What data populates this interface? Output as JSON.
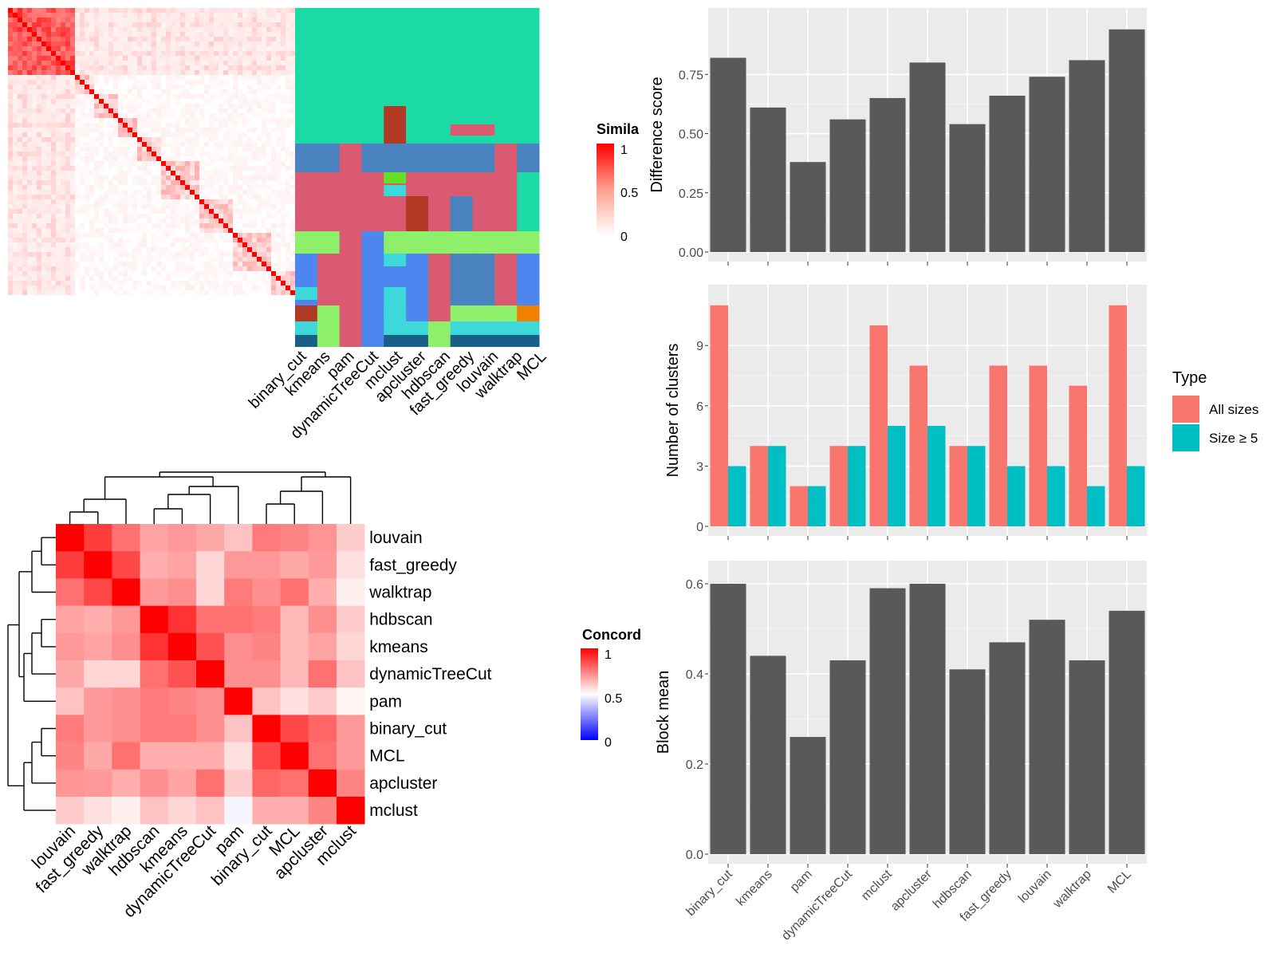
{
  "similarity_heatmap": {
    "legend_title": "Simila",
    "legend_ticks": [
      "1",
      "0.5",
      "0"
    ],
    "method_labels": [
      "binary_cut",
      "kmeans",
      "pam",
      "dynamicTreeCut",
      "mclust",
      "apcluster",
      "hdbscan",
      "fast_greedy",
      "louvain",
      "walktrap",
      "MCL"
    ],
    "colors": {
      "high": "#ff0000",
      "low": "#ffffff"
    }
  },
  "concordance_heatmap": {
    "legend_title": "Concord",
    "legend_ticks": [
      "1",
      "0.5",
      "0"
    ],
    "row_labels": [
      "louvain",
      "fast_greedy",
      "walktrap",
      "hdbscan",
      "kmeans",
      "dynamicTreeCut",
      "pam",
      "binary_cut",
      "MCL",
      "apcluster",
      "mclust"
    ],
    "col_labels": [
      "louvain",
      "fast_greedy",
      "walktrap",
      "hdbscan",
      "kmeans",
      "dynamicTreeCut",
      "pam",
      "binary_cut",
      "MCL",
      "apcluster",
      "mclust"
    ],
    "colors": {
      "high": "#ff0000",
      "mid": "#ffffff",
      "low": "#0000ff"
    }
  },
  "legend_type": {
    "title": "Type",
    "items": [
      {
        "label": "All sizes",
        "color": "#f8766d"
      },
      {
        "label": "Size ≥ 5",
        "color": "#00bfc4"
      }
    ]
  },
  "chart_data": [
    {
      "type": "bar",
      "ylabel": "Difference score",
      "categories": [
        "binary_cut",
        "kmeans",
        "pam",
        "dynamicTreeCut",
        "mclust",
        "apcluster",
        "hdbscan",
        "fast_greedy",
        "louvain",
        "walktrap",
        "MCL"
      ],
      "values": [
        0.82,
        0.61,
        0.38,
        0.56,
        0.65,
        0.8,
        0.54,
        0.66,
        0.74,
        0.81,
        0.94
      ],
      "yticks": [
        "0.00",
        "0.25",
        "0.50",
        "0.75"
      ],
      "ylim": [
        0,
        0.99
      ],
      "color": "#595959"
    },
    {
      "type": "bar",
      "ylabel": "Number of clusters",
      "categories": [
        "binary_cut",
        "kmeans",
        "pam",
        "dynamicTreeCut",
        "mclust",
        "apcluster",
        "hdbscan",
        "fast_greedy",
        "louvain",
        "walktrap",
        "MCL"
      ],
      "series": [
        {
          "name": "All sizes",
          "values": [
            11,
            4,
            2,
            4,
            10,
            8,
            4,
            8,
            8,
            7,
            11
          ]
        },
        {
          "name": "Size ≥ 5",
          "values": [
            3,
            4,
            2,
            4,
            5,
            5,
            4,
            3,
            3,
            2,
            3
          ]
        }
      ],
      "yticks": [
        "0",
        "3",
        "6",
        "9"
      ],
      "ylim": [
        0,
        11.55
      ]
    },
    {
      "type": "bar",
      "ylabel": "Block mean",
      "categories": [
        "binary_cut",
        "kmeans",
        "pam",
        "dynamicTreeCut",
        "mclust",
        "apcluster",
        "hdbscan",
        "fast_greedy",
        "louvain",
        "walktrap",
        "MCL"
      ],
      "values": [
        0.6,
        0.44,
        0.26,
        0.43,
        0.59,
        0.6,
        0.41,
        0.47,
        0.52,
        0.43,
        0.54
      ],
      "yticks": [
        "0.0",
        "0.2",
        "0.4",
        "0.6"
      ],
      "ylim": [
        0,
        0.63
      ],
      "color": "#595959"
    }
  ]
}
